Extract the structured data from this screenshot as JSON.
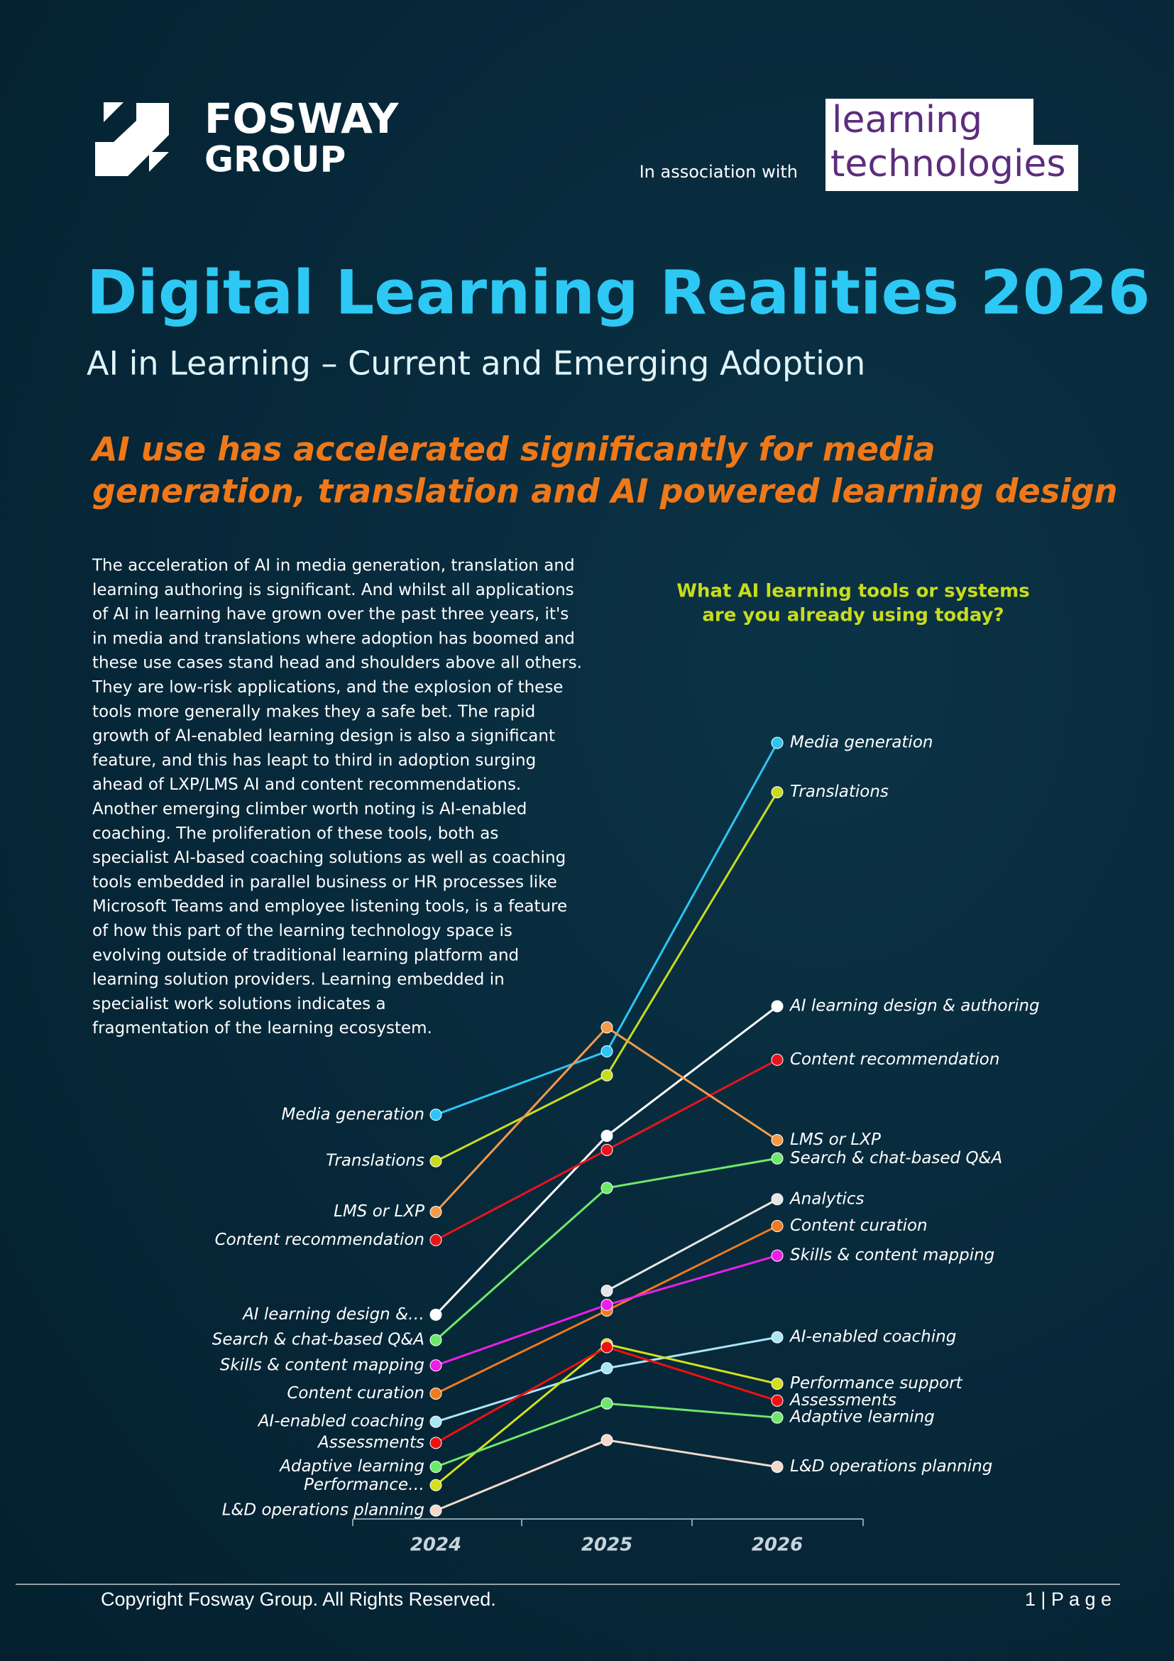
{
  "header": {
    "logo_line1": "FOSWAY",
    "logo_line2": "GROUP",
    "association": "In association with",
    "partner_line1": "learning",
    "partner_line2": "technologies"
  },
  "title": "Digital Learning Realities 2026",
  "subtitle": "AI in Learning – Current and Emerging Adoption",
  "headline": [
    "AI use has accelerated significantly for media",
    "generation, translation and AI powered learning design"
  ],
  "body": [
    "The acceleration of AI in media generation, translation and",
    "learning authoring is significant. And whilst all applications",
    "of AI in learning have grown over the past three years, it's",
    "in media and translations where adoption has boomed and",
    "these use cases stand head and shoulders above all others.",
    "They are low-risk applications, and the explosion of these",
    "tools more generally makes they a safe bet. The rapid",
    "growth of AI-enabled learning design is also a significant",
    "feature, and this has leapt to third in adoption surging",
    "ahead of LXP/LMS AI and content recommendations.",
    "Another emerging climber worth noting is AI-enabled",
    "coaching. The proliferation of these tools, both as",
    "specialist AI-based coaching solutions as well as coaching",
    "tools embedded in parallel business or HR processes like",
    "Microsoft Teams and employee listening tools, is a feature",
    "of how this part of the learning technology space is",
    "evolving outside of traditional learning platform and",
    "learning solution providers. Learning embedded in",
    "specialist work solutions indicates a",
    "fragmentation of the learning ecosystem."
  ],
  "chart_data": {
    "type": "slope",
    "title": [
      "What AI learning tools or systems",
      "are you already using today?"
    ],
    "categories": [
      "2024",
      "2025",
      "2026"
    ],
    "ylim": [
      0,
      60
    ],
    "series": [
      {
        "name": "Media generation",
        "start_label": "Media generation",
        "color": "#2ec5f5",
        "values": [
          28.6,
          33.1,
          55.0
        ]
      },
      {
        "name": "Translations",
        "start_label": "Translations",
        "color": "#c8dc1e",
        "values": [
          25.3,
          31.4,
          51.5
        ]
      },
      {
        "name": "AI learning design &  authoring",
        "start_label": "AI learning design &…",
        "color": "#ffffff",
        "values": [
          14.4,
          27.1,
          36.3
        ]
      },
      {
        "name": "Content recommendation",
        "start_label": "Content recommendation",
        "color": "#e8141c",
        "values": [
          19.7,
          26.1,
          32.5
        ]
      },
      {
        "name": "LMS or LXP",
        "start_label": "LMS or LXP",
        "color": "#f59a4a",
        "values": [
          21.7,
          34.8,
          26.8
        ]
      },
      {
        "name": "Search & chat-based Q&A",
        "start_label": "Search & chat-based Q&A",
        "color": "#6ee86a",
        "values": [
          12.6,
          23.4,
          25.5
        ]
      },
      {
        "name": "Analytics",
        "color": "#e6e6e6",
        "values": [
          null,
          16.1,
          22.6
        ]
      },
      {
        "name": "Content curation",
        "start_label": "Content curation",
        "color": "#f07a1e",
        "values": [
          8.8,
          14.7,
          20.7
        ]
      },
      {
        "name": "Skills & content mapping",
        "start_label": "Skills & content mapping",
        "color": "#ee1ee8",
        "values": [
          10.8,
          15.1,
          18.6
        ]
      },
      {
        "name": "AI-enabled coaching",
        "start_label": "AI-enabled coaching",
        "color": "#a8e6f8",
        "values": [
          6.8,
          10.6,
          12.8
        ]
      },
      {
        "name": "Performance support",
        "start_label": "Performance…",
        "color": "#d4e01a",
        "values": [
          2.3,
          12.3,
          9.5
        ]
      },
      {
        "name": "Assessments",
        "start_label": "Assessments",
        "color": "#f01010",
        "values": [
          5.3,
          12.1,
          8.3
        ]
      },
      {
        "name": "Adaptive learning",
        "start_label": "Adaptive learning",
        "color": "#6ee86a",
        "values": [
          3.6,
          8.1,
          7.1
        ]
      },
      {
        "name": "L&D operations planning",
        "start_label": "L&D operations planning",
        "color": "#f4d8cc",
        "values": [
          0.5,
          5.5,
          3.6
        ]
      }
    ]
  },
  "footer": {
    "copyright": "Copyright Fosway Group. All Rights Reserved.",
    "page": "1 | P a g e"
  }
}
